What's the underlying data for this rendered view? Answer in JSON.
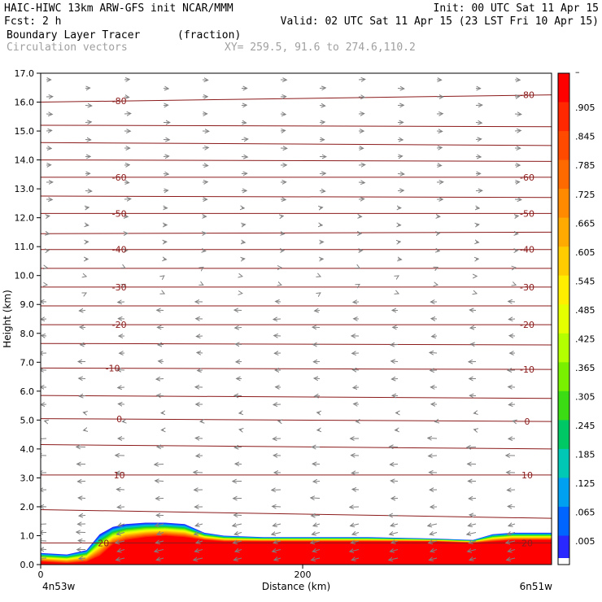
{
  "header": {
    "line1_left": "HAIC-HIWC 13km ARW-GFS init   NCAR/MMM",
    "line1_right": "Init: 00 UTC Sat 11 Apr 15",
    "line2_left": "Fcst:    2 h",
    "line2_right": "Valid: 02 UTC Sat 11 Apr 15 (23 LST Fri 10 Apr 15)",
    "line3_field": "Boundary Layer Tracer",
    "line3_units": "(fraction)",
    "line4_vectors": "Circulation vectors",
    "line4_xy": "XY= 259.5, 91.6 to 274.6,110.2"
  },
  "colors": {
    "contour": "#8b1a1a",
    "vector": "#808080"
  },
  "chart_data": {
    "type": "heatmap",
    "title": "Boundary Layer Tracer",
    "units": "(fraction)",
    "xlabel": "Distance (km)",
    "ylabel": "Height (km)",
    "xlim": [
      0,
      390
    ],
    "ylim": [
      0,
      17
    ],
    "x_ticks": [
      {
        "value": 0,
        "label": "0"
      },
      {
        "value": 200,
        "label": "200"
      }
    ],
    "x_end_labels": {
      "left": "4n53w",
      "right": "6n51w"
    },
    "y_ticks": [
      {
        "value": 0,
        "label": "0.0"
      },
      {
        "value": 1,
        "label": "1.0"
      },
      {
        "value": 2,
        "label": "2.0"
      },
      {
        "value": 3,
        "label": "3.0"
      },
      {
        "value": 4,
        "label": "4.0"
      },
      {
        "value": 5,
        "label": "5.0"
      },
      {
        "value": 6,
        "label": "6.0"
      },
      {
        "value": 7,
        "label": "7.0"
      },
      {
        "value": 8,
        "label": "8.0"
      },
      {
        "value": 9,
        "label": "9.0"
      },
      {
        "value": 10,
        "label": "10.0"
      },
      {
        "value": 11,
        "label": "11.0"
      },
      {
        "value": 12,
        "label": "12.0"
      },
      {
        "value": 13,
        "label": "13.0"
      },
      {
        "value": 14,
        "label": "14.0"
      },
      {
        "value": 15,
        "label": "15.0"
      },
      {
        "value": 16,
        "label": "16.0"
      },
      {
        "value": 17,
        "label": "17.0"
      }
    ],
    "colorbar": {
      "labels": [
        "–",
        ".905",
        ".845",
        ".785",
        ".725",
        ".665",
        ".605",
        ".545",
        ".485",
        ".425",
        ".365",
        ".305",
        ".245",
        ".185",
        ".125",
        ".065",
        ".005"
      ],
      "colors": [
        "#ff0000",
        "#ff2800",
        "#ff4a00",
        "#ff6a00",
        "#ff8a00",
        "#ffaa00",
        "#ffcc00",
        "#ffee00",
        "#e6ff00",
        "#b4ff00",
        "#78f000",
        "#3cdc14",
        "#00c864",
        "#00c8b4",
        "#00a0f0",
        "#0064ff",
        "#2828ff"
      ]
    },
    "temperature_contours": [
      {
        "label": "-80",
        "y_left": 16.0,
        "y_right": 16.25,
        "label_x": [
          60,
          390
        ]
      },
      {
        "y_left": 15.2,
        "y_right": 15.15
      },
      {
        "y_left": 14.6,
        "y_right": 14.5
      },
      {
        "y_left": 14.0,
        "y_right": 13.95
      },
      {
        "label": "-60",
        "y_left": 13.4,
        "y_right": 13.4,
        "label_x": [
          60,
          390
        ]
      },
      {
        "y_left": 12.75,
        "y_right": 12.7
      },
      {
        "label": "-50",
        "y_left": 12.15,
        "y_right": 12.15,
        "label_x": [
          60,
          390
        ]
      },
      {
        "y_left": 11.45,
        "y_right": 11.5
      },
      {
        "label": "-40",
        "y_left": 10.9,
        "y_right": 10.9,
        "label_x": [
          60,
          390
        ]
      },
      {
        "y_left": 10.25,
        "y_right": 10.25
      },
      {
        "label": "-30",
        "y_left": 9.6,
        "y_right": 9.6,
        "label_x": [
          60,
          390
        ]
      },
      {
        "y_left": 8.95,
        "y_right": 8.95
      },
      {
        "label": "-20",
        "y_left": 8.3,
        "y_right": 8.3,
        "label_x": [
          60,
          390
        ]
      },
      {
        "y_left": 7.65,
        "y_right": 7.6
      },
      {
        "label": "-10",
        "y_left": 6.8,
        "y_right": 6.75,
        "label_x": [
          55,
          390
        ]
      },
      {
        "y_left": 5.85,
        "y_right": 5.75
      },
      {
        "label": "0",
        "y_left": 5.05,
        "y_right": 4.95,
        "label_x": [
          60,
          390
        ]
      },
      {
        "y_left": 4.15,
        "y_right": 4.0
      },
      {
        "label": "10",
        "y_left": 3.1,
        "y_right": 3.1,
        "label_x": [
          60,
          390
        ]
      },
      {
        "y_left": 1.9,
        "y_right": 1.6
      },
      {
        "label": "20",
        "y_left": 0.75,
        "y_right": 0.75,
        "label_x": [
          48,
          390
        ]
      }
    ],
    "tracer_profile": {
      "x": [
        0,
        20,
        35,
        45,
        55,
        65,
        80,
        95,
        110,
        125,
        140,
        170,
        200,
        250,
        300,
        330,
        345,
        360,
        375,
        390
      ],
      "top_005": [
        0.4,
        0.35,
        0.5,
        1.05,
        1.3,
        1.4,
        1.45,
        1.45,
        1.4,
        1.1,
        1.0,
        0.95,
        0.95,
        0.95,
        0.9,
        0.85,
        1.05,
        1.1,
        1.1,
        1.1
      ],
      "top_905": [
        0.1,
        0.05,
        0.1,
        0.3,
        0.7,
        0.85,
        0.95,
        1.0,
        0.95,
        0.85,
        0.8,
        0.8,
        0.8,
        0.8,
        0.8,
        0.75,
        0.8,
        0.85,
        0.85,
        0.85
      ]
    }
  }
}
